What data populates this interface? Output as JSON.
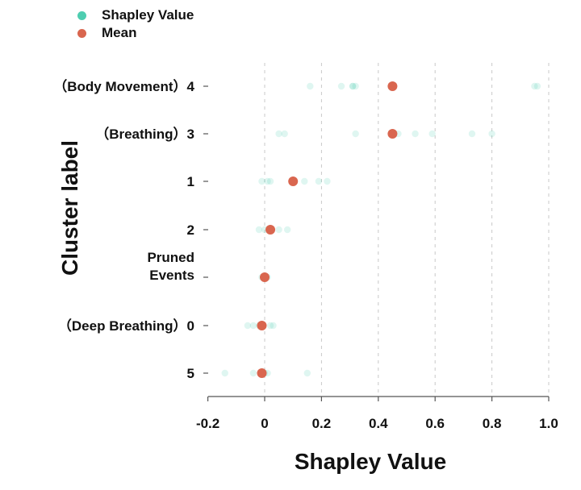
{
  "chart_data": {
    "type": "scatter",
    "xlabel": "Shapley Value",
    "ylabel": "Cluster label",
    "xlim": [
      -0.2,
      1.0
    ],
    "xticks": [
      "-0.2",
      "0",
      "0.2",
      "0.4",
      "0.6",
      "0.8",
      "1.0"
    ],
    "xtick_values": [
      -0.2,
      0,
      0.2,
      0.4,
      0.6,
      0.8,
      1.0
    ],
    "grid": "vertical dashed",
    "legend_position": "top-left",
    "categories": [
      {
        "label": "(Body Movement) 4",
        "lines": [
          "（Body Movement）4"
        ]
      },
      {
        "label": "(Breathing) 3",
        "lines": [
          "（Breathing）3"
        ]
      },
      {
        "label": "1",
        "lines": [
          "1"
        ]
      },
      {
        "label": "2",
        "lines": [
          "2"
        ]
      },
      {
        "label": "Pruned Events",
        "lines": [
          "Pruned",
          "Events"
        ]
      },
      {
        "label": "(Deep Breathing) 0",
        "lines": [
          "（Deep Breathing）0"
        ]
      },
      {
        "label": "5",
        "lines": [
          "5"
        ]
      }
    ],
    "series": [
      {
        "name": "Shapley Value",
        "color": "#4ecdb0",
        "values": [
          [
            0.16,
            0.27,
            0.31,
            0.31,
            0.32,
            0.45,
            0.95,
            0.96
          ],
          [
            0.05,
            0.07,
            0.32,
            0.47,
            0.53,
            0.59,
            0.73,
            0.8
          ],
          [
            -0.01,
            0.01,
            0.02,
            0.14,
            0.19,
            0.22
          ],
          [
            -0.02,
            0,
            0.02,
            0.05,
            0.08
          ],
          [
            -0.01,
            0,
            0.01
          ],
          [
            -0.06,
            -0.04,
            -0.02,
            0.02,
            0.03
          ],
          [
            -0.14,
            -0.04,
            0,
            0.01,
            0.15
          ]
        ]
      },
      {
        "name": "Mean",
        "color": "#d9664f",
        "values": [
          0.45,
          0.45,
          0.1,
          0.02,
          0,
          -0.01,
          -0.01
        ]
      }
    ]
  }
}
